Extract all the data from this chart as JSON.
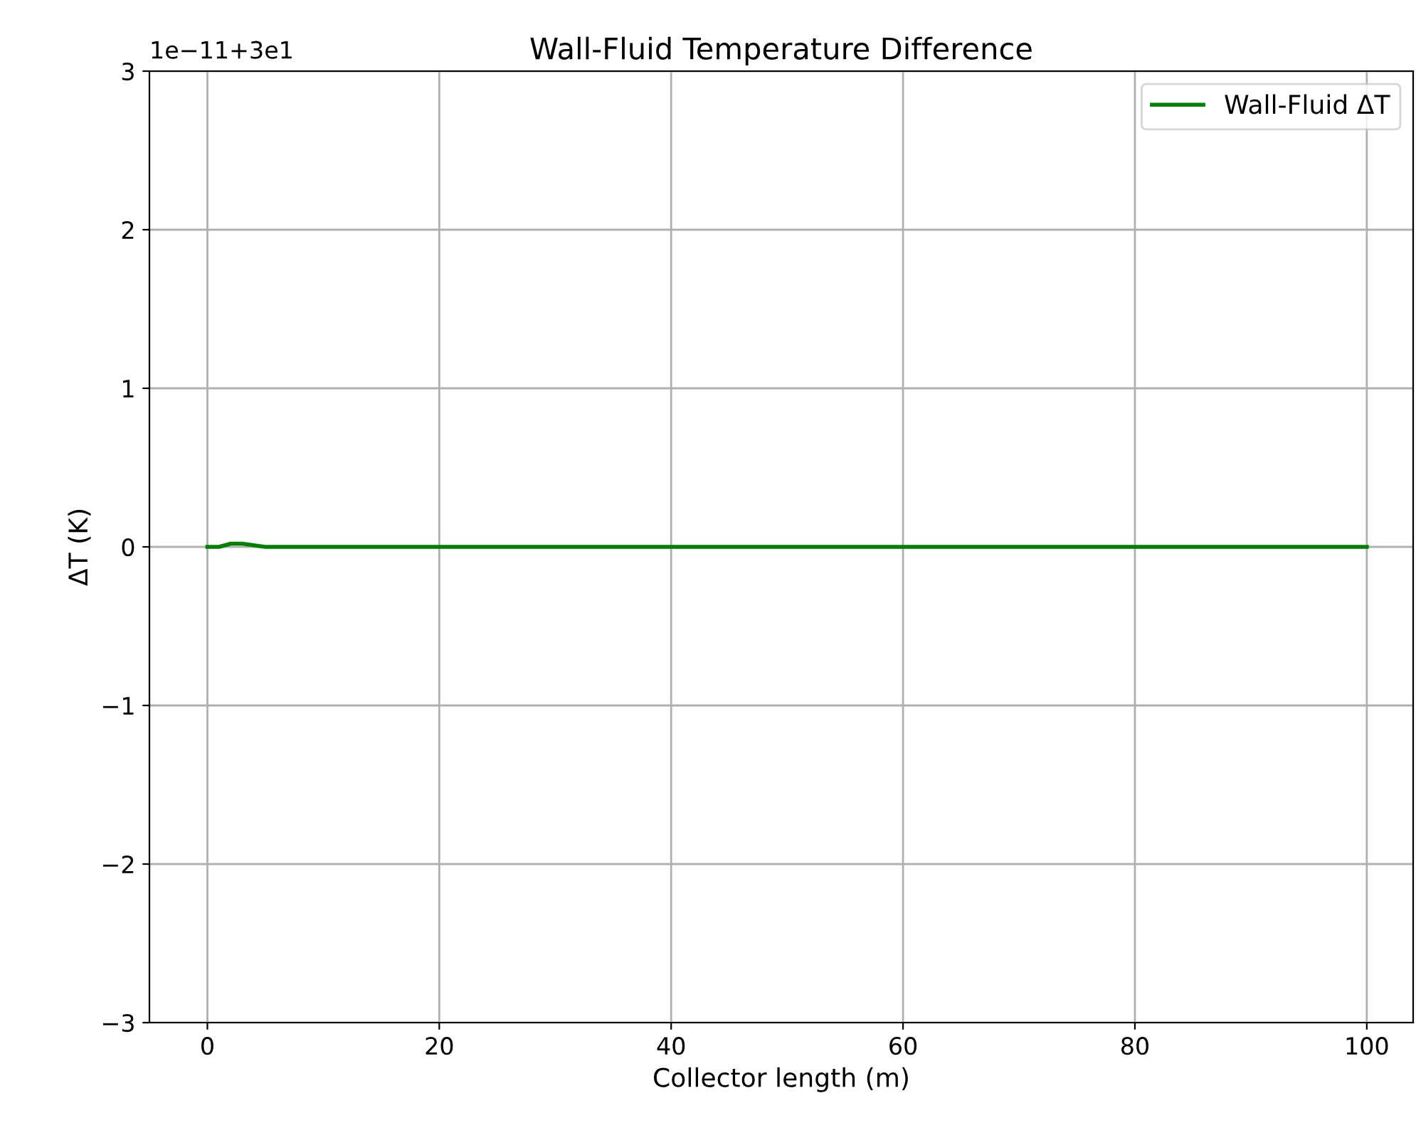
{
  "chart_data": {
    "type": "line",
    "title": "Wall-Fluid Temperature Difference",
    "xlabel": "Collector length (m)",
    "ylabel": "ΔT (K)",
    "annotations": [
      "1e−11+3e1"
    ],
    "x": [
      0,
      1,
      2,
      3,
      4,
      5,
      10,
      20,
      40,
      60,
      80,
      100
    ],
    "series": [
      {
        "name": "Wall-Fluid ΔT",
        "color": "#008000",
        "values": [
          0,
          0,
          0.02,
          0.02,
          0.01,
          0,
          0,
          0,
          0,
          0,
          0,
          0
        ]
      }
    ],
    "xlim": [
      -5,
      104
    ],
    "ylim": [
      -3,
      3
    ],
    "xticks": [
      0,
      20,
      40,
      60,
      80,
      100
    ],
    "yticks": [
      -3,
      -2,
      -1,
      0,
      1,
      2,
      3
    ],
    "grid": true,
    "legend": "top right",
    "marker": "none",
    "line_style": "solid"
  }
}
